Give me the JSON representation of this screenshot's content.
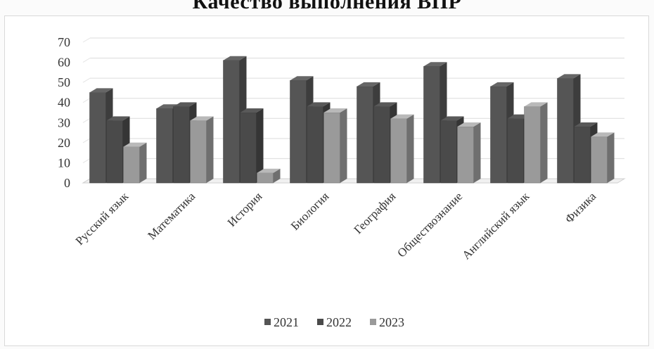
{
  "chart_data": {
    "type": "bar",
    "title": "Качество выполнения ВПР",
    "categories": [
      "Русский язык",
      "Математика",
      "История",
      "Биология",
      "География",
      "Обществознание",
      "Английский язык",
      "Физика"
    ],
    "series": [
      {
        "name": "2021",
        "values": [
          45,
          37,
          61,
          51,
          48,
          58,
          48,
          52
        ],
        "color": "#555555"
      },
      {
        "name": "2022",
        "values": [
          31,
          38,
          35,
          38,
          38,
          31,
          32,
          28
        ],
        "color": "#4a4a4a"
      },
      {
        "name": "2023",
        "values": [
          18,
          31,
          5,
          35,
          32,
          28,
          38,
          23
        ],
        "color": "#9a9a9a"
      }
    ],
    "ylim": [
      0,
      70
    ],
    "yticks": [
      "0",
      "10",
      "20",
      "30",
      "40",
      "50",
      "60",
      "70"
    ],
    "grid": true,
    "legend_position": "bottom"
  }
}
